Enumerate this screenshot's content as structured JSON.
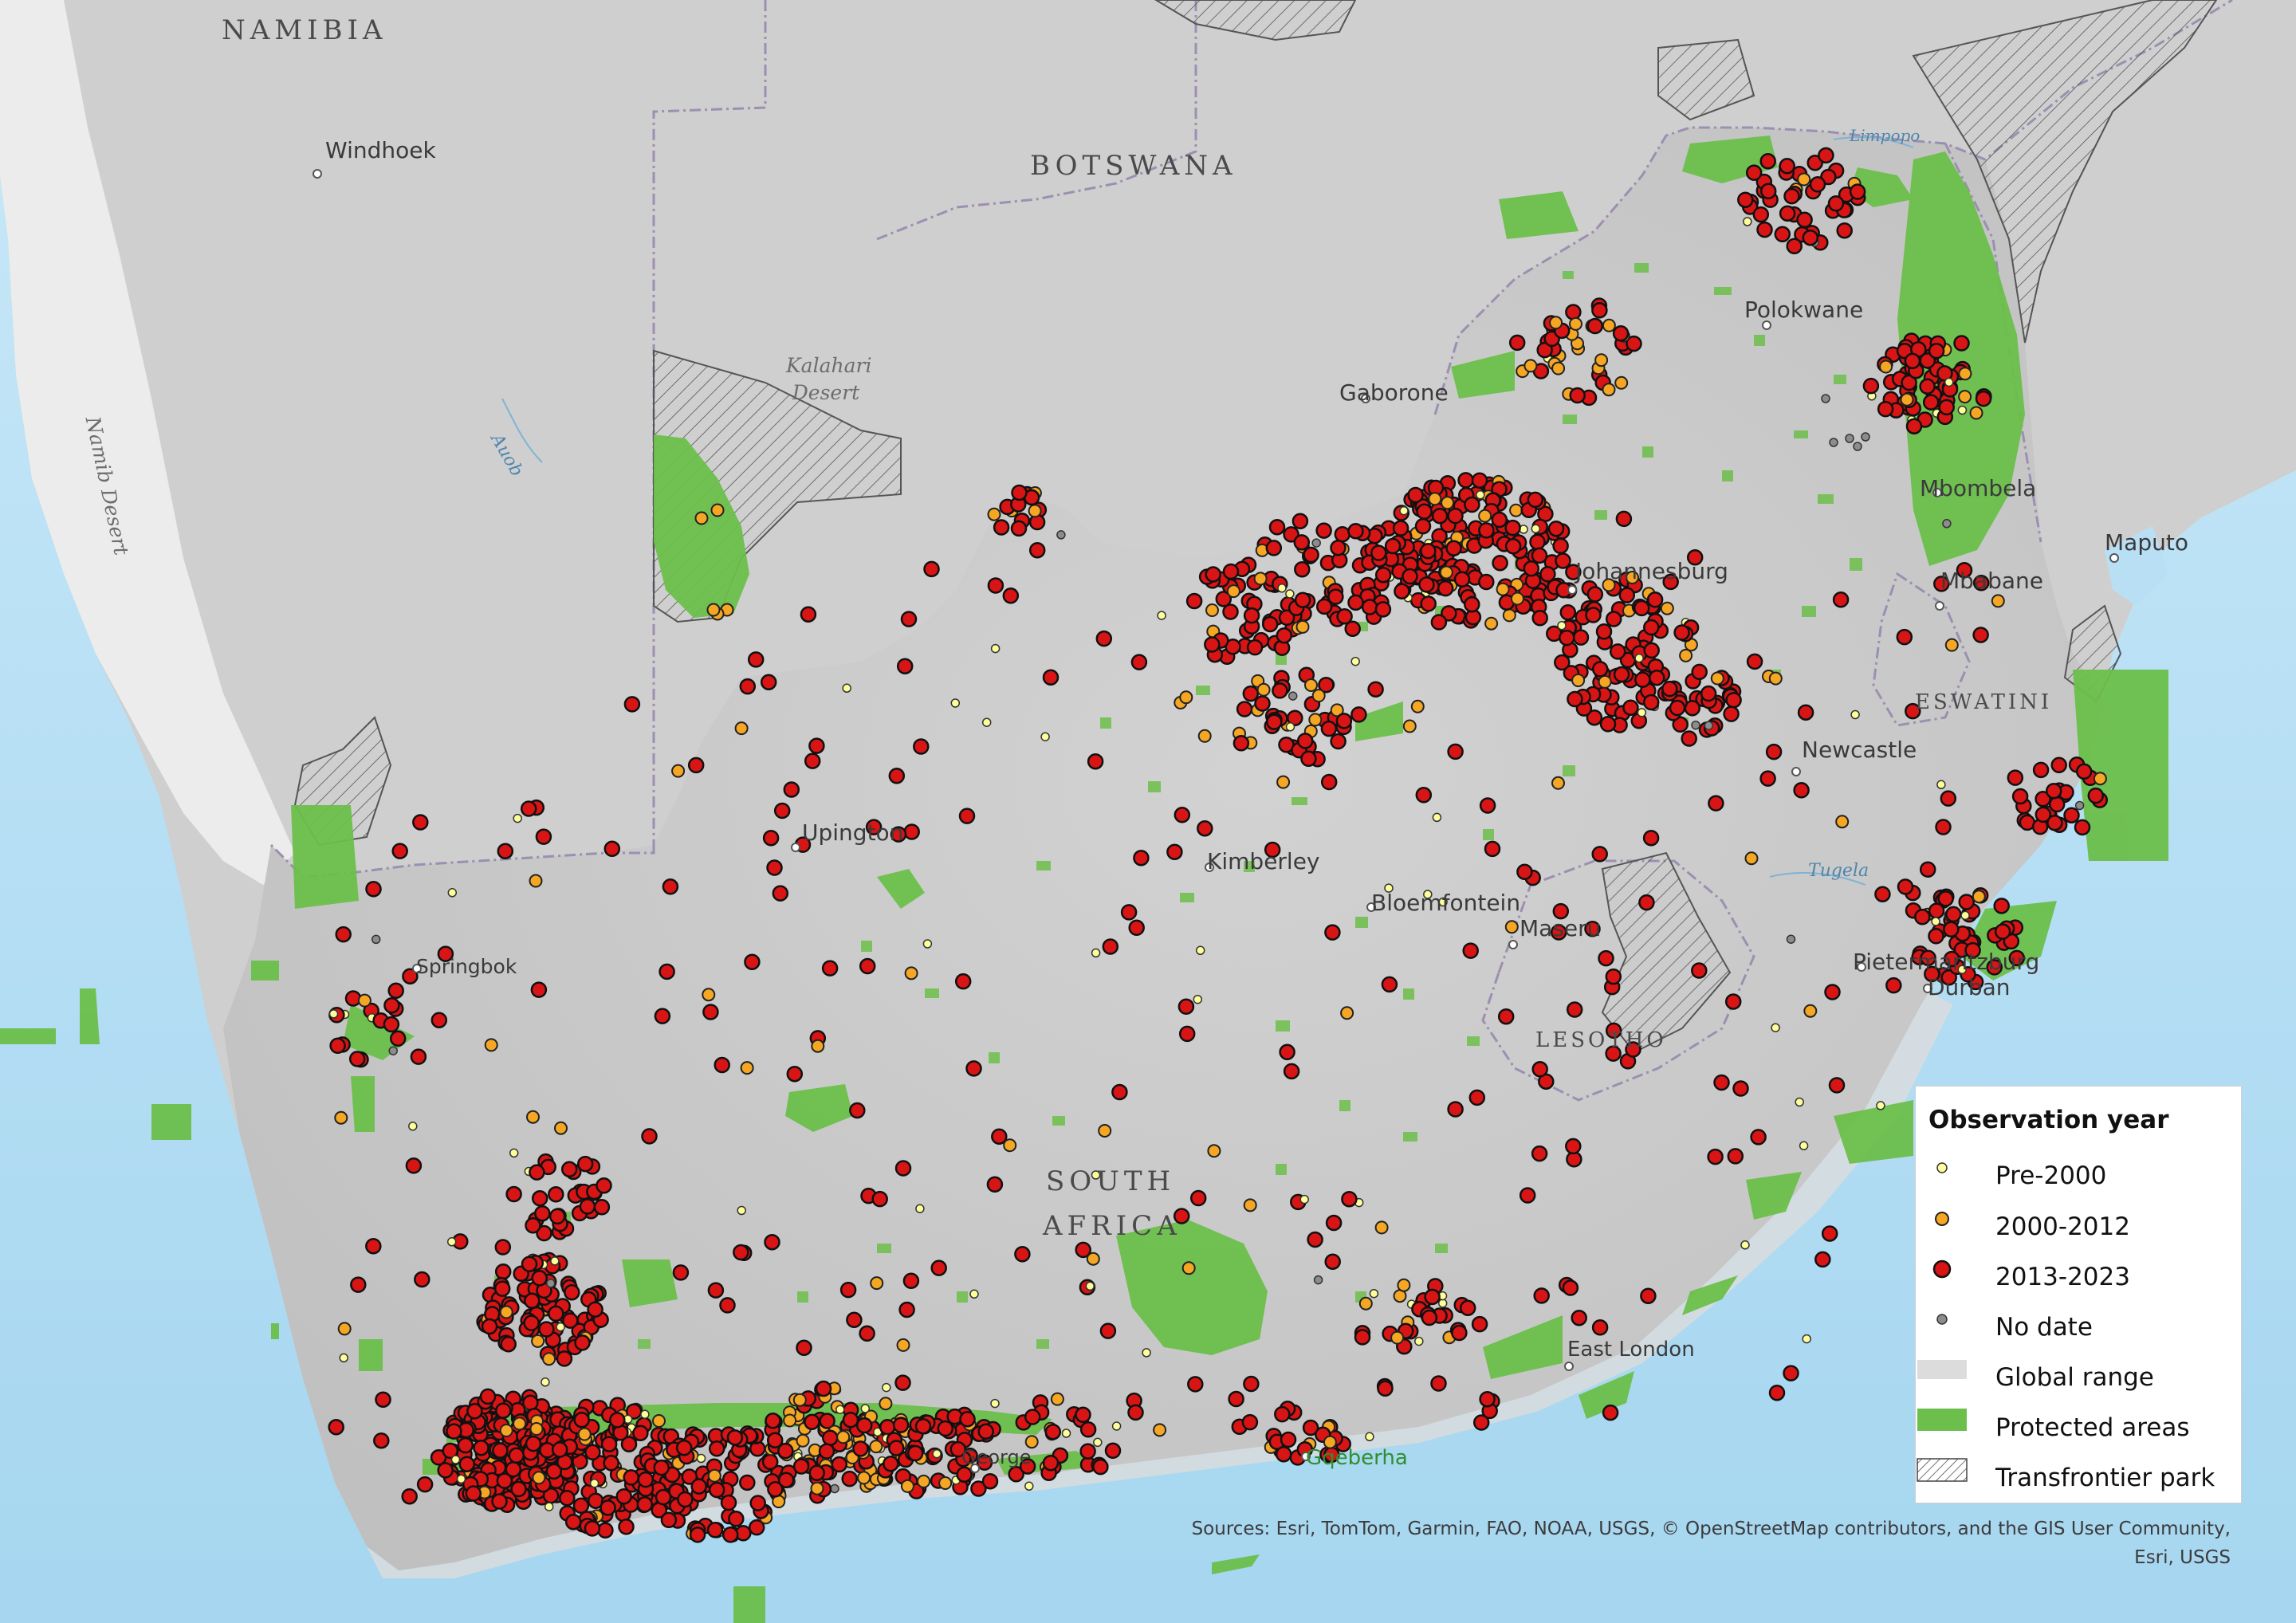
{
  "countries": [
    {
      "name": "NAMIBIA"
    },
    {
      "name": "BOTSWANA"
    },
    {
      "name": "ESWATINI"
    },
    {
      "name": "LESOTHO"
    },
    {
      "name": "SOUTH"
    },
    {
      "name": "AFRICA"
    }
  ],
  "cities": [
    "Windhoek",
    "Gaborone",
    "Polokwane",
    "Johannesburg",
    "Mbombela",
    "Maputo",
    "Mbabane",
    "Newcastle",
    "Upington",
    "Kimberley",
    "Bloemfontein",
    "Maseru",
    "Pietermaritzburg",
    "Durban",
    "Springbok",
    "East London",
    "Gqeberha",
    "George"
  ],
  "features": [
    "Kalahari Desert",
    "Namib Desert"
  ],
  "rivers": [
    "Auob",
    "Limpopo",
    "Tugela"
  ],
  "legend": {
    "title": "Observation year",
    "items": [
      {
        "label": "Pre-2000",
        "color": "#ffff99"
      },
      {
        "label": "2000-2012",
        "color": "#f5a623"
      },
      {
        "label": "2013-2023",
        "color": "#d81414"
      },
      {
        "label": "No date",
        "color": "#8c8c8c"
      },
      {
        "label": "Global range",
        "color": "#dcdcdc"
      },
      {
        "label": "Protected areas",
        "color": "#6cbf4b"
      },
      {
        "label": "Transfrontier park",
        "color": "hatch"
      }
    ]
  },
  "sources": {
    "line1": "Sources: Esri, TomTom, Garmin, FAO, NOAA, USGS, © OpenStreetMap contributors, and the GIS User Community,",
    "line2": "Esri, USGS"
  }
}
